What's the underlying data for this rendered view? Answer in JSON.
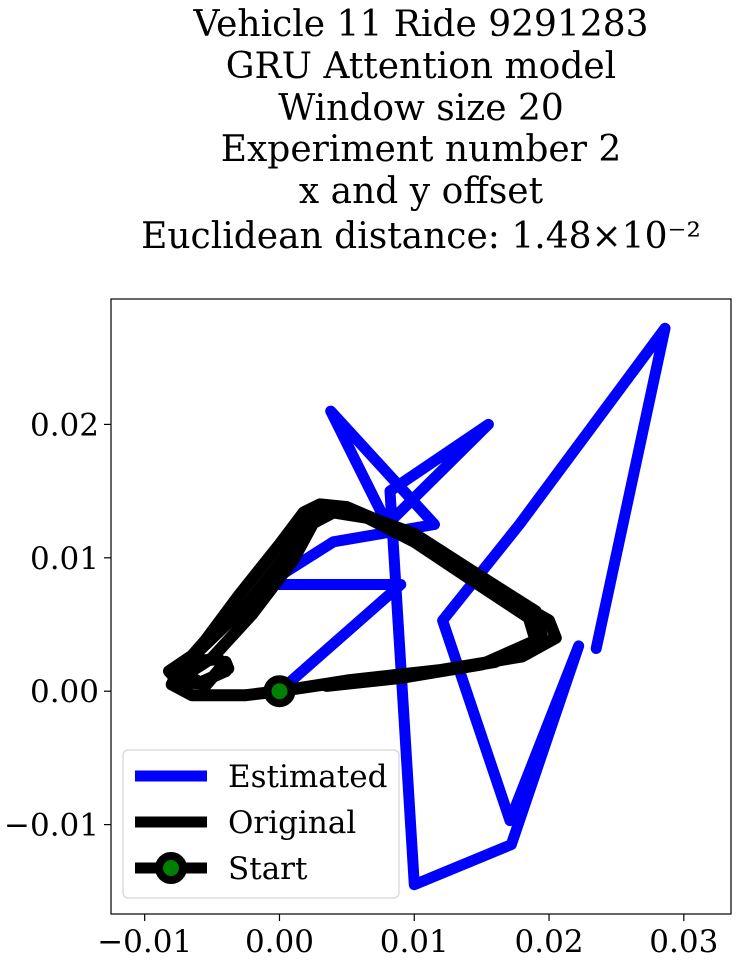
{
  "chart_data": {
    "type": "line",
    "title_lines": [
      "Vehicle 11 Ride 9291283",
      "GRU Attention model",
      "Window size 20",
      "Experiment number 2",
      "x and y offset",
      "Euclidean distance: 1.48×10⁻²"
    ],
    "xlabel": "",
    "ylabel": "",
    "xlim": [
      -0.0125,
      0.0335
    ],
    "ylim": [
      -0.0167,
      0.0294
    ],
    "xticks": [
      -0.01,
      0.0,
      0.01,
      0.02,
      0.03
    ],
    "xtick_labels": [
      "−0.01",
      "0.00",
      "0.01",
      "0.02",
      "0.03"
    ],
    "yticks": [
      -0.01,
      0.0,
      0.01,
      0.02
    ],
    "ytick_labels": [
      "−0.01",
      "0.00",
      "0.01",
      "0.02"
    ],
    "grid": false,
    "legend_position": "lower-left",
    "series": [
      {
        "name": "Estimated",
        "color": "#0000ff",
        "x": [
          0.0,
          0.009,
          -0.001,
          0.004,
          0.0115,
          0.0038,
          0.008,
          0.0155,
          0.0082,
          0.01,
          0.0172,
          0.0222,
          0.0171,
          0.0121,
          0.0178,
          0.0286,
          0.0235,
          0.0238
        ],
        "y": [
          0.0,
          0.008,
          0.008,
          0.0112,
          0.0125,
          0.021,
          0.0125,
          0.02,
          0.015,
          -0.0145,
          -0.0115,
          0.0034,
          -0.0097,
          0.0053,
          0.0125,
          0.0272,
          0.0032,
          0.0046
        ]
      },
      {
        "name": "Original",
        "color": "#000000",
        "loops": [
          {
            "x": [
              0.0,
              0.005,
              0.012,
              0.018,
              0.0205,
              0.02,
              0.016,
              0.012,
              0.008,
              0.005,
              0.003,
              0.0018,
              0.0,
              -0.003,
              -0.0055,
              -0.0075,
              -0.008,
              -0.0065,
              -0.0025,
              0.0,
              0.004
            ],
            "y": [
              0.0,
              0.0008,
              0.0016,
              0.0026,
              0.004,
              0.0053,
              0.0076,
              0.01,
              0.0125,
              0.0138,
              0.014,
              0.0134,
              0.011,
              0.0072,
              0.0038,
              0.0015,
              0.0005,
              -0.0003,
              -0.0003,
              0.0,
              0.0006
            ]
          },
          {
            "x": [
              0.004,
              0.01,
              0.016,
              0.0195,
              0.019,
              0.014,
              0.01,
              0.006,
              0.0035,
              0.0022,
              0.0005,
              -0.0025,
              -0.006,
              -0.0082,
              -0.0075,
              -0.006,
              -0.004
            ],
            "y": [
              0.0006,
              0.0012,
              0.0022,
              0.004,
              0.006,
              0.0092,
              0.0118,
              0.0133,
              0.0136,
              0.0128,
              0.0102,
              0.0064,
              0.003,
              0.0015,
              0.0007,
              0.0006,
              0.0015
            ]
          },
          {
            "x": [
              -0.004,
              -0.0045,
              -0.0058,
              -0.0068,
              -0.0055,
              -0.005,
              -0.004,
              -0.0038
            ],
            "y": [
              0.0015,
              0.0024,
              0.0023,
              0.0012,
              0.0004,
              0.001,
              0.0022,
              0.0017
            ]
          },
          {
            "x": [
              0.0035,
              0.009,
              0.015,
              0.019,
              0.0185,
              0.014,
              0.01,
              0.0065,
              0.004,
              0.0025,
              0.001,
              -0.002,
              -0.005,
              -0.007
            ],
            "y": [
              0.0004,
              0.001,
              0.002,
              0.0038,
              0.0055,
              0.0085,
              0.0112,
              0.013,
              0.0134,
              0.0126,
              0.0098,
              0.0058,
              0.0025,
              0.0012
            ]
          }
        ]
      },
      {
        "name": "Start",
        "color": "#000000",
        "marker_color": "#008000",
        "x": [
          0.0
        ],
        "y": [
          0.0
        ]
      }
    ]
  }
}
